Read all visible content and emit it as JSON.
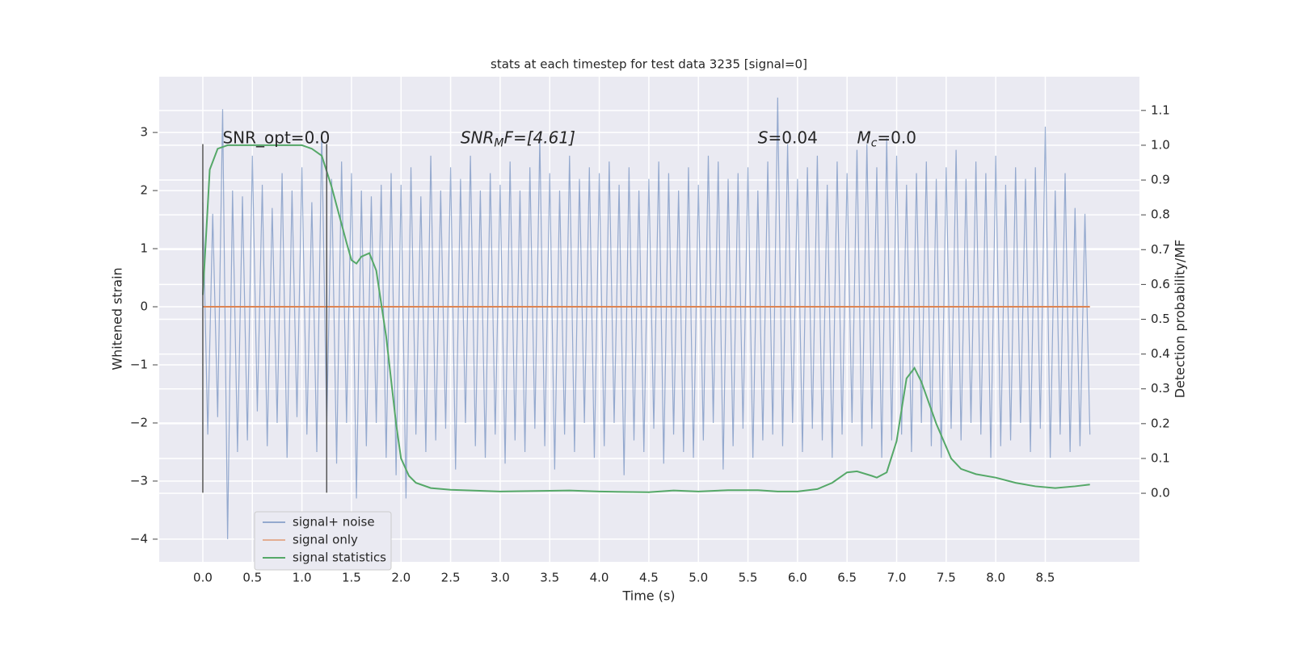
{
  "chart_data": {
    "type": "line",
    "title": "stats at each timestep for test data 3235 [signal=0]",
    "x_label": "Time (s)",
    "y_label": "Whitened strain",
    "y2_label": "Detection probability/MF",
    "xlim": [
      -0.44,
      9.45
    ],
    "ylim": [
      -4.39,
      3.96
    ],
    "y2lim": [
      -0.197,
      1.197
    ],
    "xticks": [
      {
        "value": 0,
        "label": "0.0"
      },
      0.5,
      {
        "value": 1,
        "label": "1.0"
      },
      1.5,
      {
        "value": 2,
        "label": "2.0"
      },
      2.5,
      {
        "value": 3,
        "label": "3.0"
      },
      3.5,
      {
        "value": 4,
        "label": "4.0"
      },
      4.5,
      {
        "value": 5,
        "label": "5.0"
      },
      5.5,
      {
        "value": 6,
        "label": "6.0"
      },
      6.5,
      {
        "value": 7,
        "label": "7.0"
      },
      7.5,
      {
        "value": 8,
        "label": "8.0"
      },
      8.5
    ],
    "yticks": [
      {
        "value": -4,
        "label": "−4"
      },
      {
        "value": -3,
        "label": "−3"
      },
      {
        "value": -2,
        "label": "−2"
      },
      {
        "value": -1,
        "label": "−1"
      },
      0,
      1,
      2,
      3
    ],
    "y2ticks": [
      {
        "value": 0,
        "label": "0.0"
      },
      0.1,
      0.2,
      0.3,
      0.4,
      0.5,
      0.6,
      0.7,
      0.8,
      0.9,
      {
        "value": 1,
        "label": "1.0"
      },
      1.1
    ],
    "grid": true,
    "legend": "lower left",
    "annotations": [
      {
        "parts": [
          "SNR_opt=0.0"
        ]
      },
      {
        "parts": [
          "SNR",
          "M",
          "F=[4.61]"
        ]
      },
      {
        "parts": [
          "S",
          "=0.04"
        ]
      },
      {
        "parts": [
          "M",
          "c",
          "=0.0"
        ]
      }
    ],
    "vlines": [
      {
        "x": 0,
        "ymin": -3.2,
        "ymax": 2.8
      },
      {
        "x": 1.25,
        "ymin": -3.2,
        "ymax": 2.8
      }
    ],
    "series": [
      {
        "name": "signal+ noise",
        "color": "#4c72b0",
        "x": [
          0,
          0.05,
          0.1,
          0.15,
          0.2,
          0.25,
          0.3,
          0.35,
          0.4,
          0.45,
          0.5,
          0.55,
          0.6,
          0.65,
          0.7,
          0.75,
          0.8,
          0.85,
          0.9,
          0.95,
          1,
          1.05,
          1.1,
          1.15,
          1.2,
          1.25,
          1.3,
          1.35,
          1.4,
          1.45,
          1.5,
          1.55,
          1.6,
          1.65,
          1.7,
          1.75,
          1.8,
          1.85,
          1.9,
          1.95,
          2,
          2.05,
          2.1,
          2.15,
          2.2,
          2.25,
          2.3,
          2.35,
          2.4,
          2.45,
          2.5,
          2.55,
          2.6,
          2.65,
          2.7,
          2.75,
          2.8,
          2.85,
          2.9,
          2.95,
          3,
          3.05,
          3.1,
          3.15,
          3.2,
          3.25,
          3.3,
          3.35,
          3.4,
          3.45,
          3.5,
          3.55,
          3.6,
          3.65,
          3.7,
          3.75,
          3.8,
          3.85,
          3.9,
          3.95,
          4,
          4.05,
          4.1,
          4.15,
          4.2,
          4.25,
          4.3,
          4.35,
          4.4,
          4.45,
          4.5,
          4.55,
          4.6,
          4.65,
          4.7,
          4.75,
          4.8,
          4.85,
          4.9,
          4.95,
          5,
          5.05,
          5.1,
          5.15,
          5.2,
          5.25,
          5.3,
          5.35,
          5.4,
          5.45,
          5.5,
          5.55,
          5.6,
          5.65,
          5.7,
          5.75,
          5.8,
          5.85,
          5.9,
          5.95,
          6,
          6.05,
          6.1,
          6.15,
          6.2,
          6.25,
          6.3,
          6.35,
          6.4,
          6.45,
          6.5,
          6.55,
          6.6,
          6.65,
          6.7,
          6.75,
          6.8,
          6.85,
          6.9,
          6.95,
          7,
          7.05,
          7.1,
          7.15,
          7.2,
          7.25,
          7.3,
          7.35,
          7.4,
          7.45,
          7.5,
          7.55,
          7.6,
          7.65,
          7.7,
          7.75,
          7.8,
          7.85,
          7.9,
          7.95,
          8,
          8.05,
          8.1,
          8.15,
          8.2,
          8.25,
          8.3,
          8.35,
          8.4,
          8.45,
          8.5,
          8.55,
          8.6,
          8.65,
          8.7,
          8.75,
          8.8,
          8.85,
          8.9,
          8.95
        ],
        "values": [
          1.8,
          -2.2,
          1.6,
          -1.9,
          3.4,
          -4.0,
          2.0,
          -2.5,
          1.9,
          -2.3,
          2.6,
          -1.8,
          2.1,
          -2.4,
          1.7,
          -2.0,
          2.3,
          -2.6,
          2.0,
          -1.9,
          2.4,
          -2.2,
          1.8,
          -2.5,
          3.0,
          -2.1,
          2.2,
          -2.7,
          2.5,
          -2.0,
          2.3,
          -3.3,
          2.0,
          -2.4,
          1.9,
          -2.0,
          2.1,
          -2.6,
          2.3,
          -2.9,
          2.1,
          -3.3,
          2.4,
          -2.2,
          1.9,
          -2.5,
          2.6,
          -2.3,
          2.0,
          -2.1,
          2.4,
          -2.8,
          2.2,
          -2.0,
          2.6,
          -2.4,
          2.0,
          -2.6,
          2.3,
          -2.2,
          2.1,
          -2.7,
          2.5,
          -2.3,
          2.0,
          -2.5,
          2.4,
          -2.1,
          2.9,
          -2.4,
          2.3,
          -2.8,
          2.0,
          -2.2,
          2.6,
          -2.5,
          2.2,
          -2.0,
          2.4,
          -2.6,
          2.3,
          -2.4,
          2.5,
          -2.0,
          2.1,
          -2.9,
          2.4,
          -2.3,
          2.0,
          -2.5,
          2.2,
          -2.1,
          2.5,
          -2.7,
          2.3,
          -2.2,
          2.0,
          -2.5,
          2.4,
          -2.6,
          2.1,
          -2.3,
          2.6,
          -2.0,
          2.5,
          -2.8,
          2.2,
          -2.4,
          2.3,
          -2.1,
          2.4,
          -2.6,
          2.0,
          -2.3,
          2.5,
          -2.2,
          3.6,
          -2.4,
          2.8,
          -2.0,
          2.2,
          -2.5,
          2.4,
          -2.1,
          2.6,
          -2.3,
          2.1,
          -2.6,
          2.5,
          -2.2,
          2.3,
          -2.0,
          2.7,
          -2.4,
          2.8,
          -2.1,
          2.4,
          -2.6,
          2.9,
          -2.3,
          2.6,
          -2.2,
          2.1,
          -2.5,
          2.3,
          -2.0,
          2.5,
          -2.4,
          2.2,
          -2.6,
          2.4,
          -2.1,
          2.7,
          -2.3,
          2.2,
          -2.0,
          2.5,
          -2.2,
          2.3,
          -2.6,
          2.6,
          -2.4,
          2.1,
          -2.3,
          2.4,
          -2.0,
          2.2,
          -2.5,
          2.4,
          -2.1,
          3.1,
          -2.6,
          2.0,
          -2.2,
          2.3,
          -2.5,
          1.7,
          -2.4,
          1.6,
          -2.2
        ]
      },
      {
        "name": "signal only",
        "color": "#dd8452",
        "x": [
          0,
          8.95
        ],
        "values": [
          0,
          0
        ]
      },
      {
        "name": "signal statistics",
        "color": "#55a868",
        "axis": "y2",
        "x": [
          0,
          0.07,
          0.15,
          0.25,
          0.5,
          0.75,
          1.0,
          1.1,
          1.2,
          1.3,
          1.45,
          1.5,
          1.55,
          1.6,
          1.68,
          1.75,
          1.85,
          1.95,
          2.0,
          2.08,
          2.15,
          2.3,
          2.5,
          3.0,
          3.5,
          3.7,
          4.0,
          4.5,
          4.75,
          5.0,
          5.3,
          5.6,
          5.8,
          6.0,
          6.2,
          6.35,
          6.5,
          6.6,
          6.75,
          6.8,
          6.9,
          7.0,
          7.1,
          7.18,
          7.25,
          7.4,
          7.55,
          7.65,
          7.8,
          8.0,
          8.2,
          8.4,
          8.6,
          8.8,
          8.95
        ],
        "values": [
          0.57,
          0.93,
          0.99,
          1.0,
          1.0,
          1.0,
          1.0,
          0.99,
          0.97,
          0.88,
          0.72,
          0.67,
          0.66,
          0.68,
          0.69,
          0.64,
          0.45,
          0.2,
          0.1,
          0.05,
          0.03,
          0.015,
          0.01,
          0.005,
          0.007,
          0.008,
          0.005,
          0.003,
          0.008,
          0.005,
          0.009,
          0.009,
          0.005,
          0.005,
          0.012,
          0.03,
          0.06,
          0.063,
          0.05,
          0.045,
          0.06,
          0.15,
          0.33,
          0.36,
          0.32,
          0.2,
          0.1,
          0.07,
          0.055,
          0.045,
          0.03,
          0.02,
          0.015,
          0.02,
          0.025
        ]
      }
    ]
  }
}
